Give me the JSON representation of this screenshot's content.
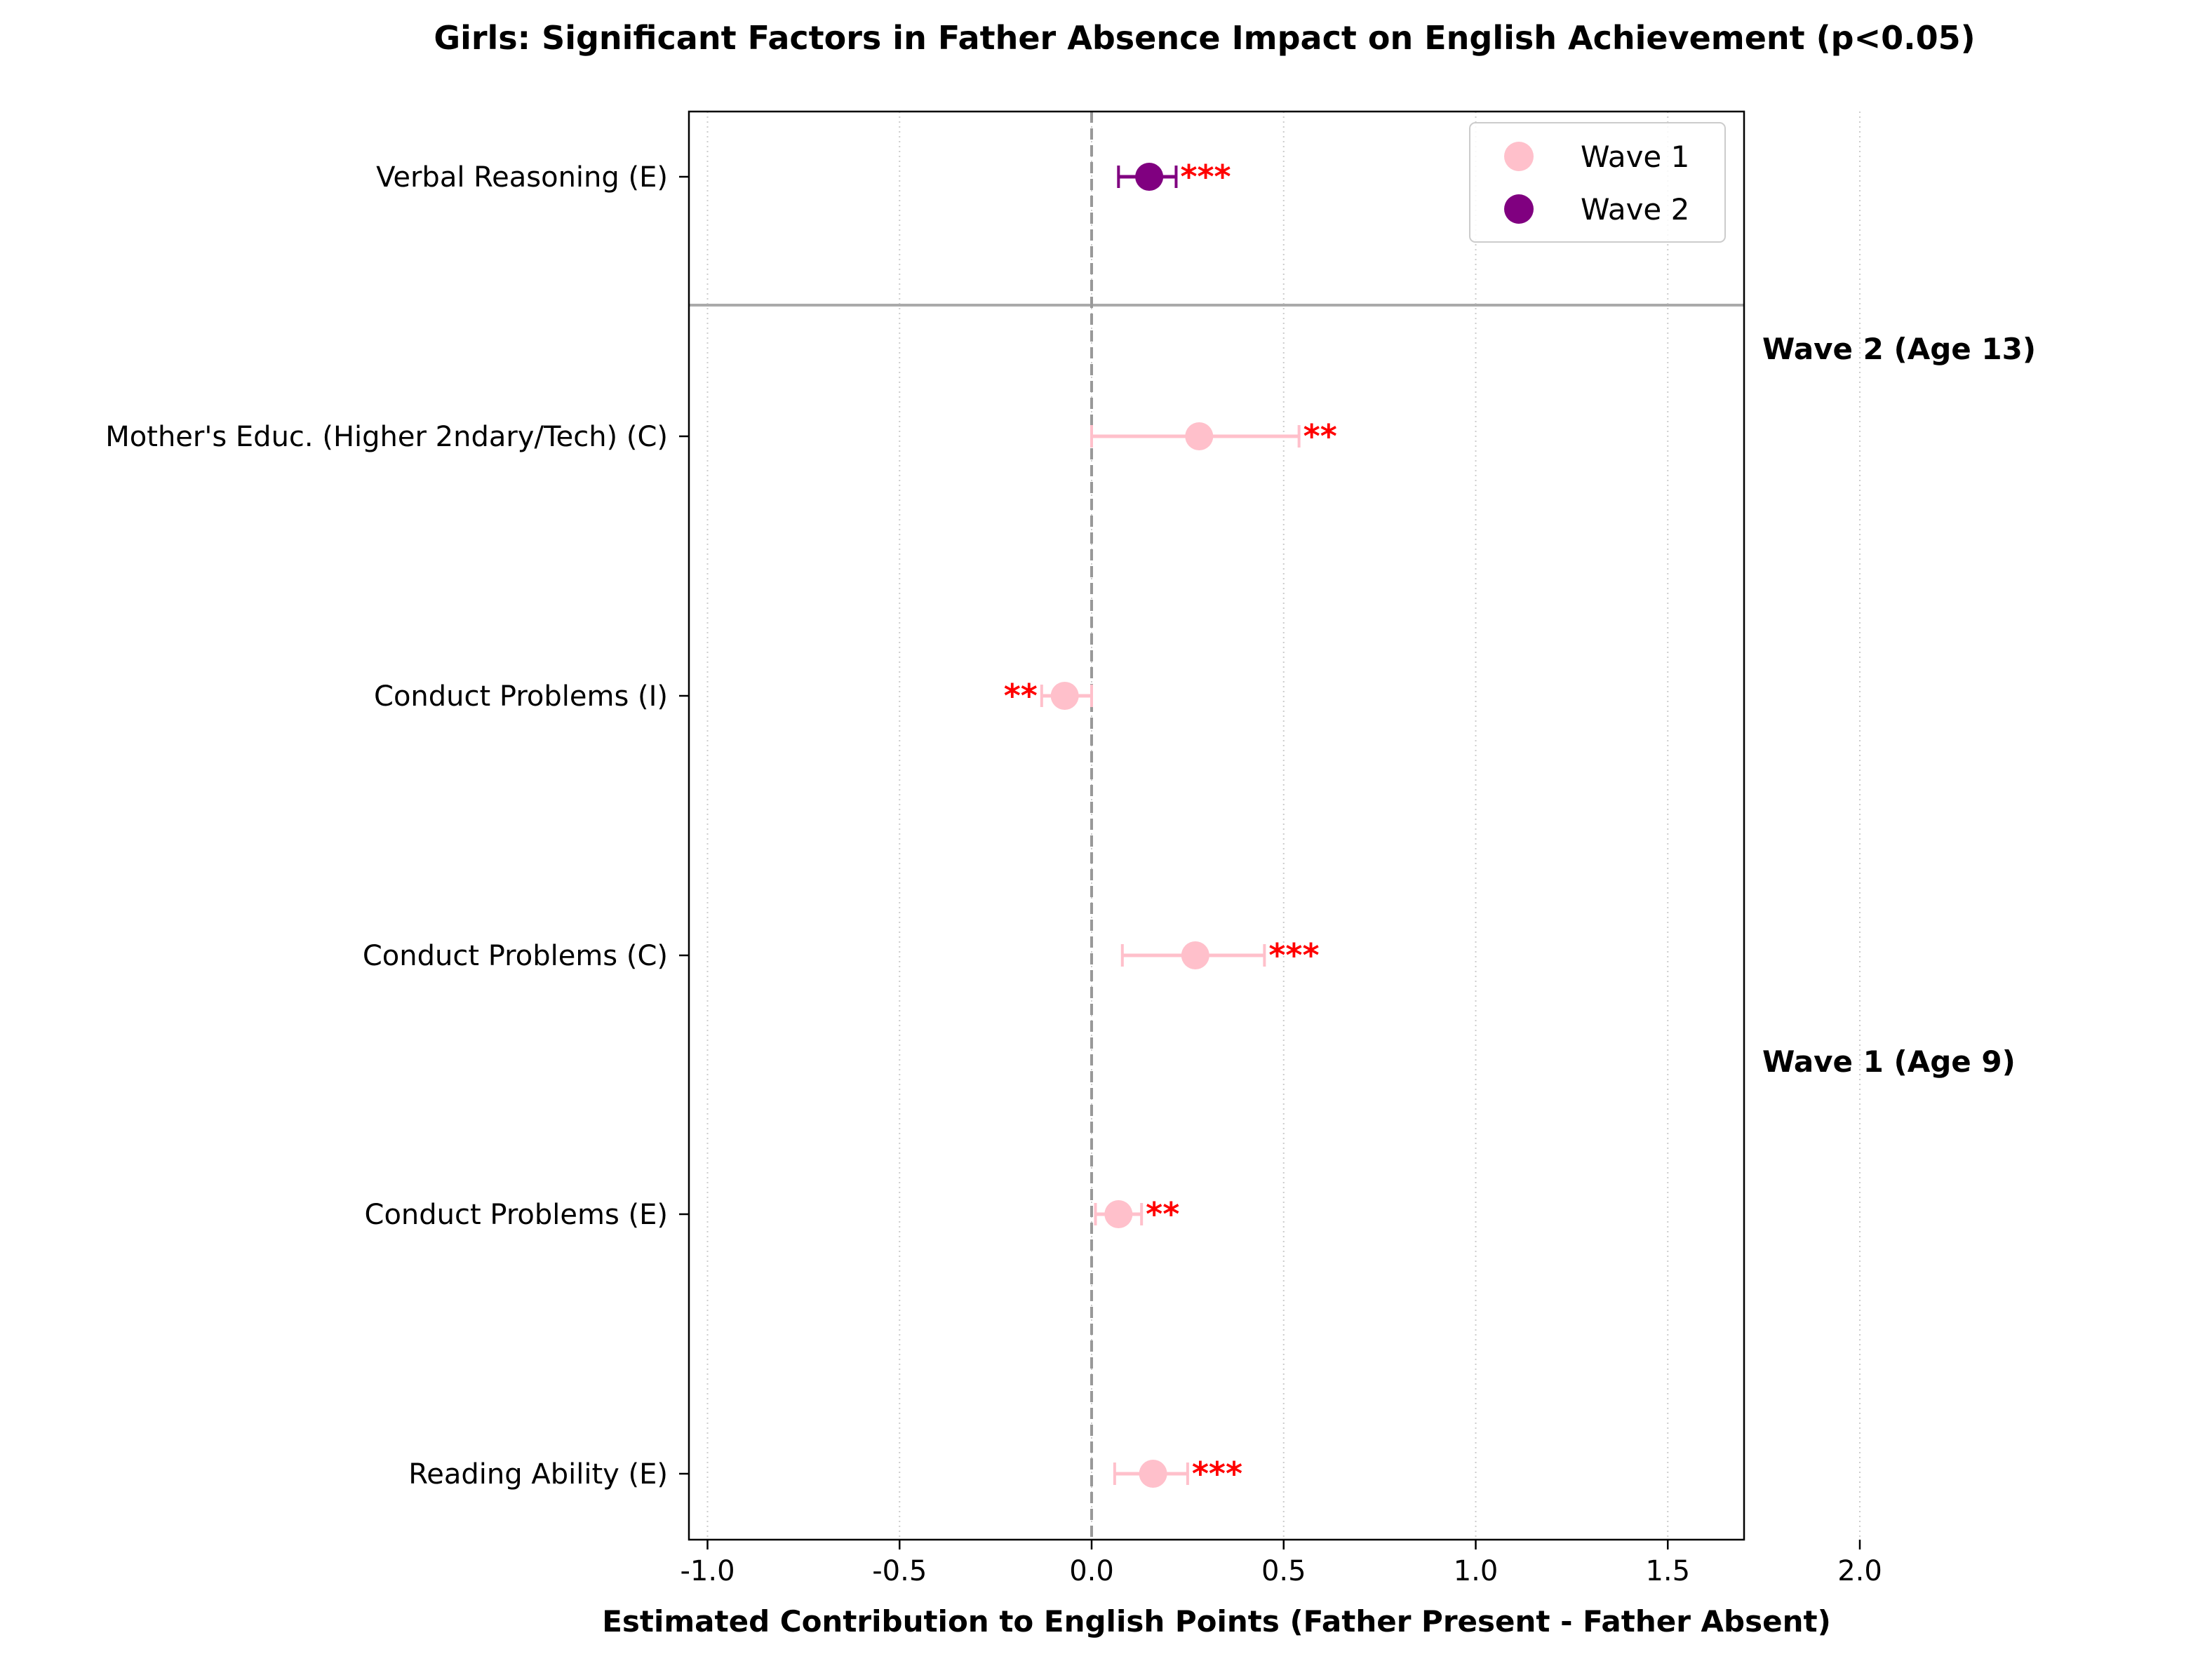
{
  "chart_data": {
    "type": "scatter",
    "title": "Girls: Significant Factors in Father Absence Impact on English Achievement (p<0.05)",
    "xlabel": "Estimated Contribution to English Points (Father Present - Father Absent)",
    "ylabel": "",
    "xlim": [
      -2.0,
      3.4
    ],
    "x_ticks": [
      -1.0,
      -0.5,
      0.0,
      0.5,
      1.0,
      1.5,
      2.0
    ],
    "x_tick_labels": [
      "-1.0",
      "-0.5",
      "0.0",
      "0.5",
      "1.0",
      "1.5",
      "2.0"
    ],
    "grid": "x-dotted",
    "legend_placement": "top-right",
    "colors": {
      "wave1": "#ffc0cb",
      "wave2": "#800080",
      "sig": "#ff0000",
      "zero_line": "#999999",
      "separator": "#aaaaaa"
    },
    "series": [
      {
        "name": "Wave 1",
        "color": "#ffc0cb"
      },
      {
        "name": "Wave 2",
        "color": "#800080"
      }
    ],
    "wave_labels": [
      {
        "text": "Wave 2 (Age 13)",
        "group": "wave2"
      },
      {
        "text": "Wave 1 (Age 9)",
        "group": "wave1"
      }
    ],
    "points": [
      {
        "label": "Verbal Reasoning (E)",
        "wave": "Wave 2",
        "estimate": 0.15,
        "ci": [
          0.07,
          0.22
        ],
        "sig": "***"
      },
      {
        "label": "Mother's Educ. (Higher 2ndary/Tech) (C)",
        "wave": "Wave 1",
        "estimate": 0.28,
        "ci": [
          0.0,
          0.54
        ],
        "sig": "**"
      },
      {
        "label": "Conduct Problems (I)",
        "wave": "Wave 1",
        "estimate": -0.07,
        "ci": [
          -0.13,
          0.0
        ],
        "sig": "**"
      },
      {
        "label": "Conduct Problems (C)",
        "wave": "Wave 1",
        "estimate": 0.27,
        "ci": [
          0.08,
          0.45
        ],
        "sig": "***"
      },
      {
        "label": "Conduct Problems (E)",
        "wave": "Wave 1",
        "estimate": 0.07,
        "ci": [
          0.01,
          0.13
        ],
        "sig": "**"
      },
      {
        "label": "Reading Ability (E)",
        "wave": "Wave 1",
        "estimate": 0.16,
        "ci": [
          0.06,
          0.25
        ],
        "sig": "***"
      }
    ]
  }
}
